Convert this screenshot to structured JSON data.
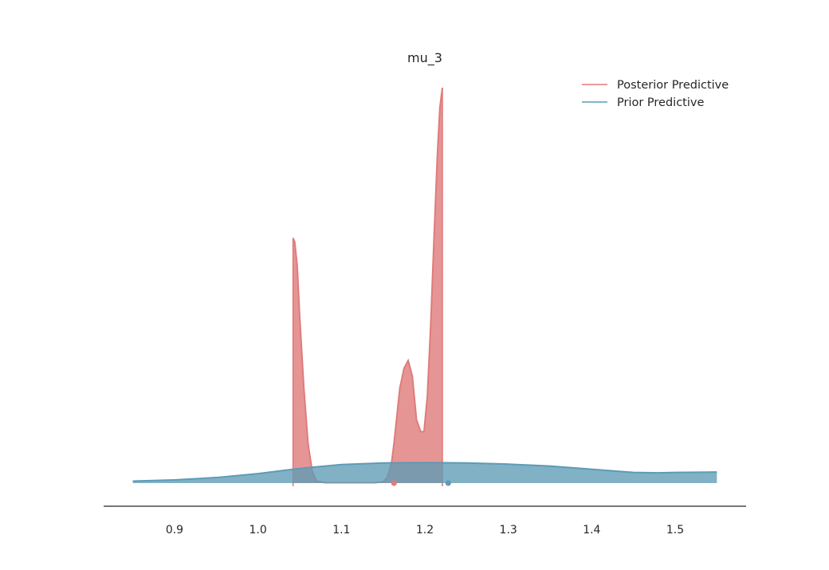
{
  "chart_data": {
    "type": "area",
    "title": "mu_3",
    "xlabel": "",
    "ylabel": "",
    "xlim": [
      0.815,
      1.585
    ],
    "ylim": [
      -0.03,
      1.05
    ],
    "x_ticks": [
      "0.9",
      "1.0",
      "1.1",
      "1.2",
      "1.3",
      "1.4",
      "1.5"
    ],
    "x_tick_values": [
      0.9,
      1.0,
      1.1,
      1.2,
      1.3,
      1.4,
      1.5
    ],
    "grid": false,
    "legend_position": "top-right",
    "colors": {
      "posterior": "#e07b7b",
      "prior": "#5e9bb5"
    },
    "series": [
      {
        "name": "Posterior Predictive",
        "color": "#e07b7b",
        "point_marker_x": 1.163,
        "x": [
          1.042,
          1.044,
          1.047,
          1.05,
          1.055,
          1.06,
          1.065,
          1.07,
          1.08,
          1.1,
          1.12,
          1.14,
          1.15,
          1.155,
          1.16,
          1.163,
          1.166,
          1.17,
          1.175,
          1.18,
          1.185,
          1.19,
          1.195,
          1.199,
          1.203,
          1.207,
          1.211,
          1.215,
          1.218,
          1.221
        ],
        "y": [
          0.62,
          0.61,
          0.55,
          0.42,
          0.24,
          0.1,
          0.03,
          0.005,
          0.001,
          0.001,
          0.001,
          0.001,
          0.003,
          0.015,
          0.05,
          0.1,
          0.16,
          0.24,
          0.29,
          0.31,
          0.27,
          0.16,
          0.13,
          0.13,
          0.22,
          0.4,
          0.62,
          0.83,
          0.95,
          1.0
        ]
      },
      {
        "name": "Prior Predictive",
        "color": "#5e9bb5",
        "point_marker_x": 1.228,
        "x": [
          0.85,
          0.9,
          0.95,
          1.0,
          1.05,
          1.1,
          1.15,
          1.2,
          1.25,
          1.3,
          1.35,
          1.4,
          1.45,
          1.48,
          1.5,
          1.55
        ],
        "y": [
          0.005,
          0.008,
          0.014,
          0.024,
          0.037,
          0.047,
          0.051,
          0.052,
          0.051,
          0.048,
          0.043,
          0.035,
          0.027,
          0.026,
          0.027,
          0.028
        ]
      }
    ]
  }
}
